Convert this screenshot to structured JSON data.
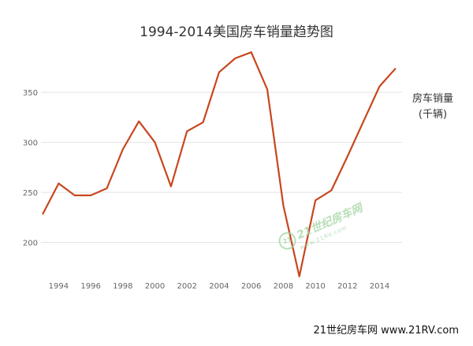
{
  "chart_data": {
    "type": "line",
    "title": "1994-2014美国房车销量趋势图",
    "unit_label_line1": "房车销量",
    "unit_label_line2": "(千辆)",
    "xlim": [
      1992.9,
      2015.4
    ],
    "ylim": [
      165,
      395
    ],
    "grid": true,
    "y_ticks": [
      200,
      250,
      300,
      350
    ],
    "x_ticks": [
      1994,
      1996,
      1998,
      2000,
      2002,
      2004,
      2006,
      2008,
      2010,
      2012,
      2014
    ],
    "line_color": "#c8461e",
    "series": [
      {
        "x": [
          1993,
          1994,
          1995,
          1996,
          1997,
          1998,
          1999,
          2000,
          2001,
          2002,
          2003,
          2004,
          2005,
          2006,
          2007,
          2008,
          2009,
          2010,
          2011,
          2012,
          2013,
          2014,
          2015
        ],
        "values": [
          228,
          259,
          247,
          247,
          254,
          293,
          321,
          300,
          256,
          311,
          320,
          370,
          384,
          390,
          353,
          237,
          166,
          242,
          252,
          286,
          321,
          356,
          374
        ]
      }
    ]
  },
  "watermark": {
    "logo": "21",
    "main": "21世纪房车网",
    "sub": "www.21RV.com"
  },
  "footer": "21世纪房车网  www.21RV.com"
}
